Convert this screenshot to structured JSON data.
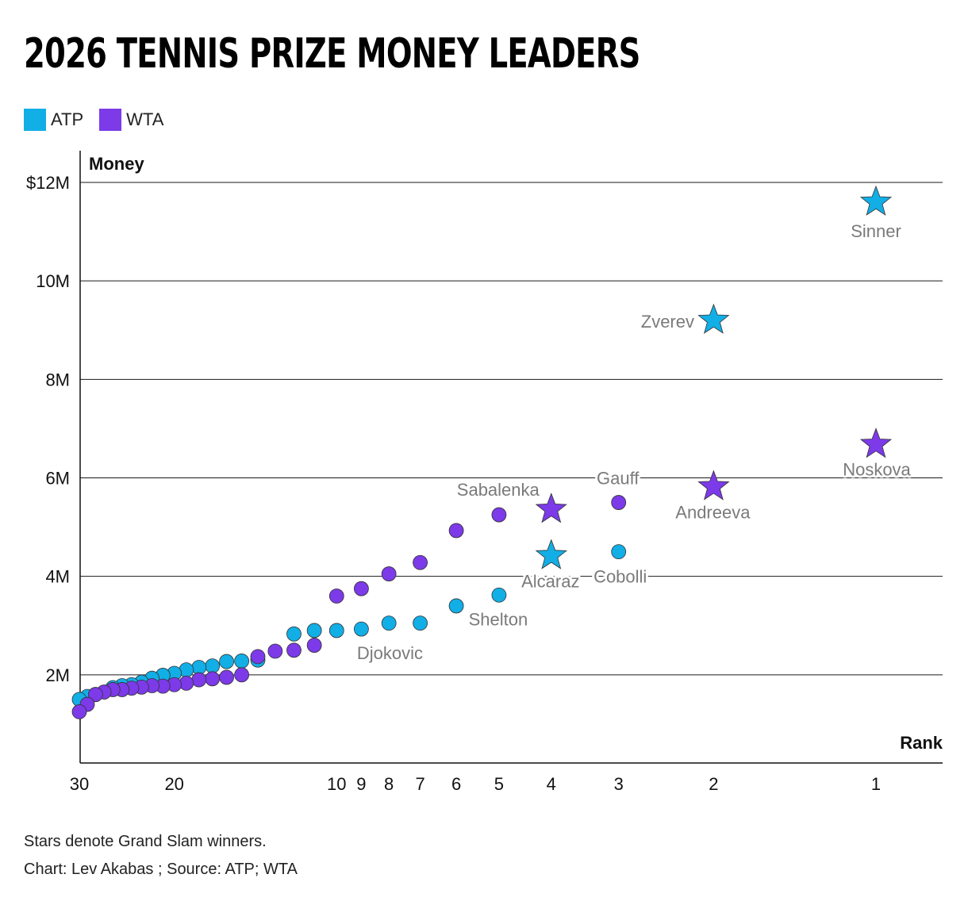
{
  "title": "2026 TENNIS PRIZE MONEY LEADERS",
  "legend": [
    {
      "label": "ATP",
      "color": "#12AEE6"
    },
    {
      "label": "WTA",
      "color": "#7C3AE8"
    }
  ],
  "notes": {
    "stars": "Stars denote Grand Slam winners.",
    "credit": "Chart: Lev Akabas ; Source: ATP; WTA"
  },
  "chart_data": {
    "type": "scatter",
    "xlabel": "Rank",
    "ylabel": "Money",
    "x_scale": "reversed-log",
    "xlim": [
      30,
      1
    ],
    "ylim": [
      0,
      12
    ],
    "y_unit": "millions of dollars",
    "x_ticks": [
      "30",
      "20",
      "10",
      "9",
      "8",
      "7",
      "6",
      "5",
      "4",
      "3",
      "2",
      "1"
    ],
    "y_ticks": [
      "2M",
      "4M",
      "6M",
      "8M",
      "10M",
      "$12M"
    ],
    "grid": "horizontal",
    "legend_placement": "top-left",
    "series": [
      {
        "name": "ATP",
        "color": "#12AEE6",
        "points": [
          {
            "rank": 1,
            "value": 11.6,
            "label": "Sinner",
            "grand_slam": true
          },
          {
            "rank": 2,
            "value": 9.2,
            "label": "Zverev",
            "grand_slam": true
          },
          {
            "rank": 3,
            "value": 4.5,
            "label": "Cobolli",
            "grand_slam": false
          },
          {
            "rank": 4,
            "value": 4.42,
            "label": "Alcaraz",
            "grand_slam": true
          },
          {
            "rank": 5,
            "value": 3.62,
            "label": "Shelton",
            "grand_slam": false
          },
          {
            "rank": 6,
            "value": 3.4,
            "grand_slam": false
          },
          {
            "rank": 7,
            "value": 3.05,
            "grand_slam": false
          },
          {
            "rank": 8,
            "value": 3.05,
            "grand_slam": false
          },
          {
            "rank": 9,
            "value": 2.93,
            "label": "Djokovic",
            "grand_slam": false
          },
          {
            "rank": 10,
            "value": 2.9,
            "grand_slam": false
          },
          {
            "rank": 11,
            "value": 2.9,
            "grand_slam": false
          },
          {
            "rank": 12,
            "value": 2.83,
            "grand_slam": false
          },
          {
            "rank": 14,
            "value": 2.3,
            "grand_slam": false
          },
          {
            "rank": 15,
            "value": 2.28,
            "grand_slam": false
          },
          {
            "rank": 16,
            "value": 2.27,
            "grand_slam": false
          },
          {
            "rank": 17,
            "value": 2.18,
            "grand_slam": false
          },
          {
            "rank": 18,
            "value": 2.15,
            "grand_slam": false
          },
          {
            "rank": 19,
            "value": 2.1,
            "grand_slam": false
          },
          {
            "rank": 20,
            "value": 2.03,
            "grand_slam": false
          },
          {
            "rank": 21,
            "value": 1.99,
            "grand_slam": false
          },
          {
            "rank": 22,
            "value": 1.93,
            "grand_slam": false
          },
          {
            "rank": 23,
            "value": 1.85,
            "grand_slam": false
          },
          {
            "rank": 24,
            "value": 1.8,
            "grand_slam": false
          },
          {
            "rank": 25,
            "value": 1.78,
            "grand_slam": false
          },
          {
            "rank": 26,
            "value": 1.74,
            "grand_slam": false
          },
          {
            "rank": 28,
            "value": 1.6,
            "grand_slam": false
          },
          {
            "rank": 29,
            "value": 1.56,
            "grand_slam": false
          },
          {
            "rank": 30,
            "value": 1.5,
            "grand_slam": false
          }
        ]
      },
      {
        "name": "WTA",
        "color": "#7C3AE8",
        "points": [
          {
            "rank": 1,
            "value": 6.68,
            "label": "Noskova",
            "grand_slam": true
          },
          {
            "rank": 2,
            "value": 5.82,
            "label": "Andreeva",
            "grand_slam": true
          },
          {
            "rank": 3,
            "value": 5.5,
            "label": "Gauff",
            "grand_slam": false
          },
          {
            "rank": 4,
            "value": 5.36,
            "label": "Sabalenka",
            "grand_slam": true
          },
          {
            "rank": 5,
            "value": 5.25,
            "grand_slam": false
          },
          {
            "rank": 6,
            "value": 4.93,
            "grand_slam": false
          },
          {
            "rank": 7,
            "value": 4.28,
            "grand_slam": false
          },
          {
            "rank": 8,
            "value": 4.05,
            "grand_slam": false
          },
          {
            "rank": 9,
            "value": 3.75,
            "grand_slam": false
          },
          {
            "rank": 10,
            "value": 3.6,
            "grand_slam": false
          },
          {
            "rank": 11,
            "value": 2.6,
            "grand_slam": false
          },
          {
            "rank": 12,
            "value": 2.5,
            "grand_slam": false
          },
          {
            "rank": 13,
            "value": 2.48,
            "grand_slam": false
          },
          {
            "rank": 14,
            "value": 2.37,
            "grand_slam": false
          },
          {
            "rank": 15,
            "value": 2.0,
            "grand_slam": false
          },
          {
            "rank": 16,
            "value": 1.95,
            "grand_slam": false
          },
          {
            "rank": 17,
            "value": 1.92,
            "grand_slam": false
          },
          {
            "rank": 18,
            "value": 1.9,
            "grand_slam": false
          },
          {
            "rank": 19,
            "value": 1.83,
            "grand_slam": false
          },
          {
            "rank": 20,
            "value": 1.8,
            "grand_slam": false
          },
          {
            "rank": 21,
            "value": 1.77,
            "grand_slam": false
          },
          {
            "rank": 22,
            "value": 1.78,
            "grand_slam": false
          },
          {
            "rank": 23,
            "value": 1.75,
            "grand_slam": false
          },
          {
            "rank": 24,
            "value": 1.73,
            "grand_slam": false
          },
          {
            "rank": 25,
            "value": 1.7,
            "grand_slam": false
          },
          {
            "rank": 26,
            "value": 1.7,
            "grand_slam": false
          },
          {
            "rank": 27,
            "value": 1.65,
            "grand_slam": false
          },
          {
            "rank": 28,
            "value": 1.6,
            "grand_slam": false
          },
          {
            "rank": 29,
            "value": 1.4,
            "grand_slam": false
          },
          {
            "rank": 30,
            "value": 1.25,
            "grand_slam": false
          }
        ]
      }
    ]
  }
}
